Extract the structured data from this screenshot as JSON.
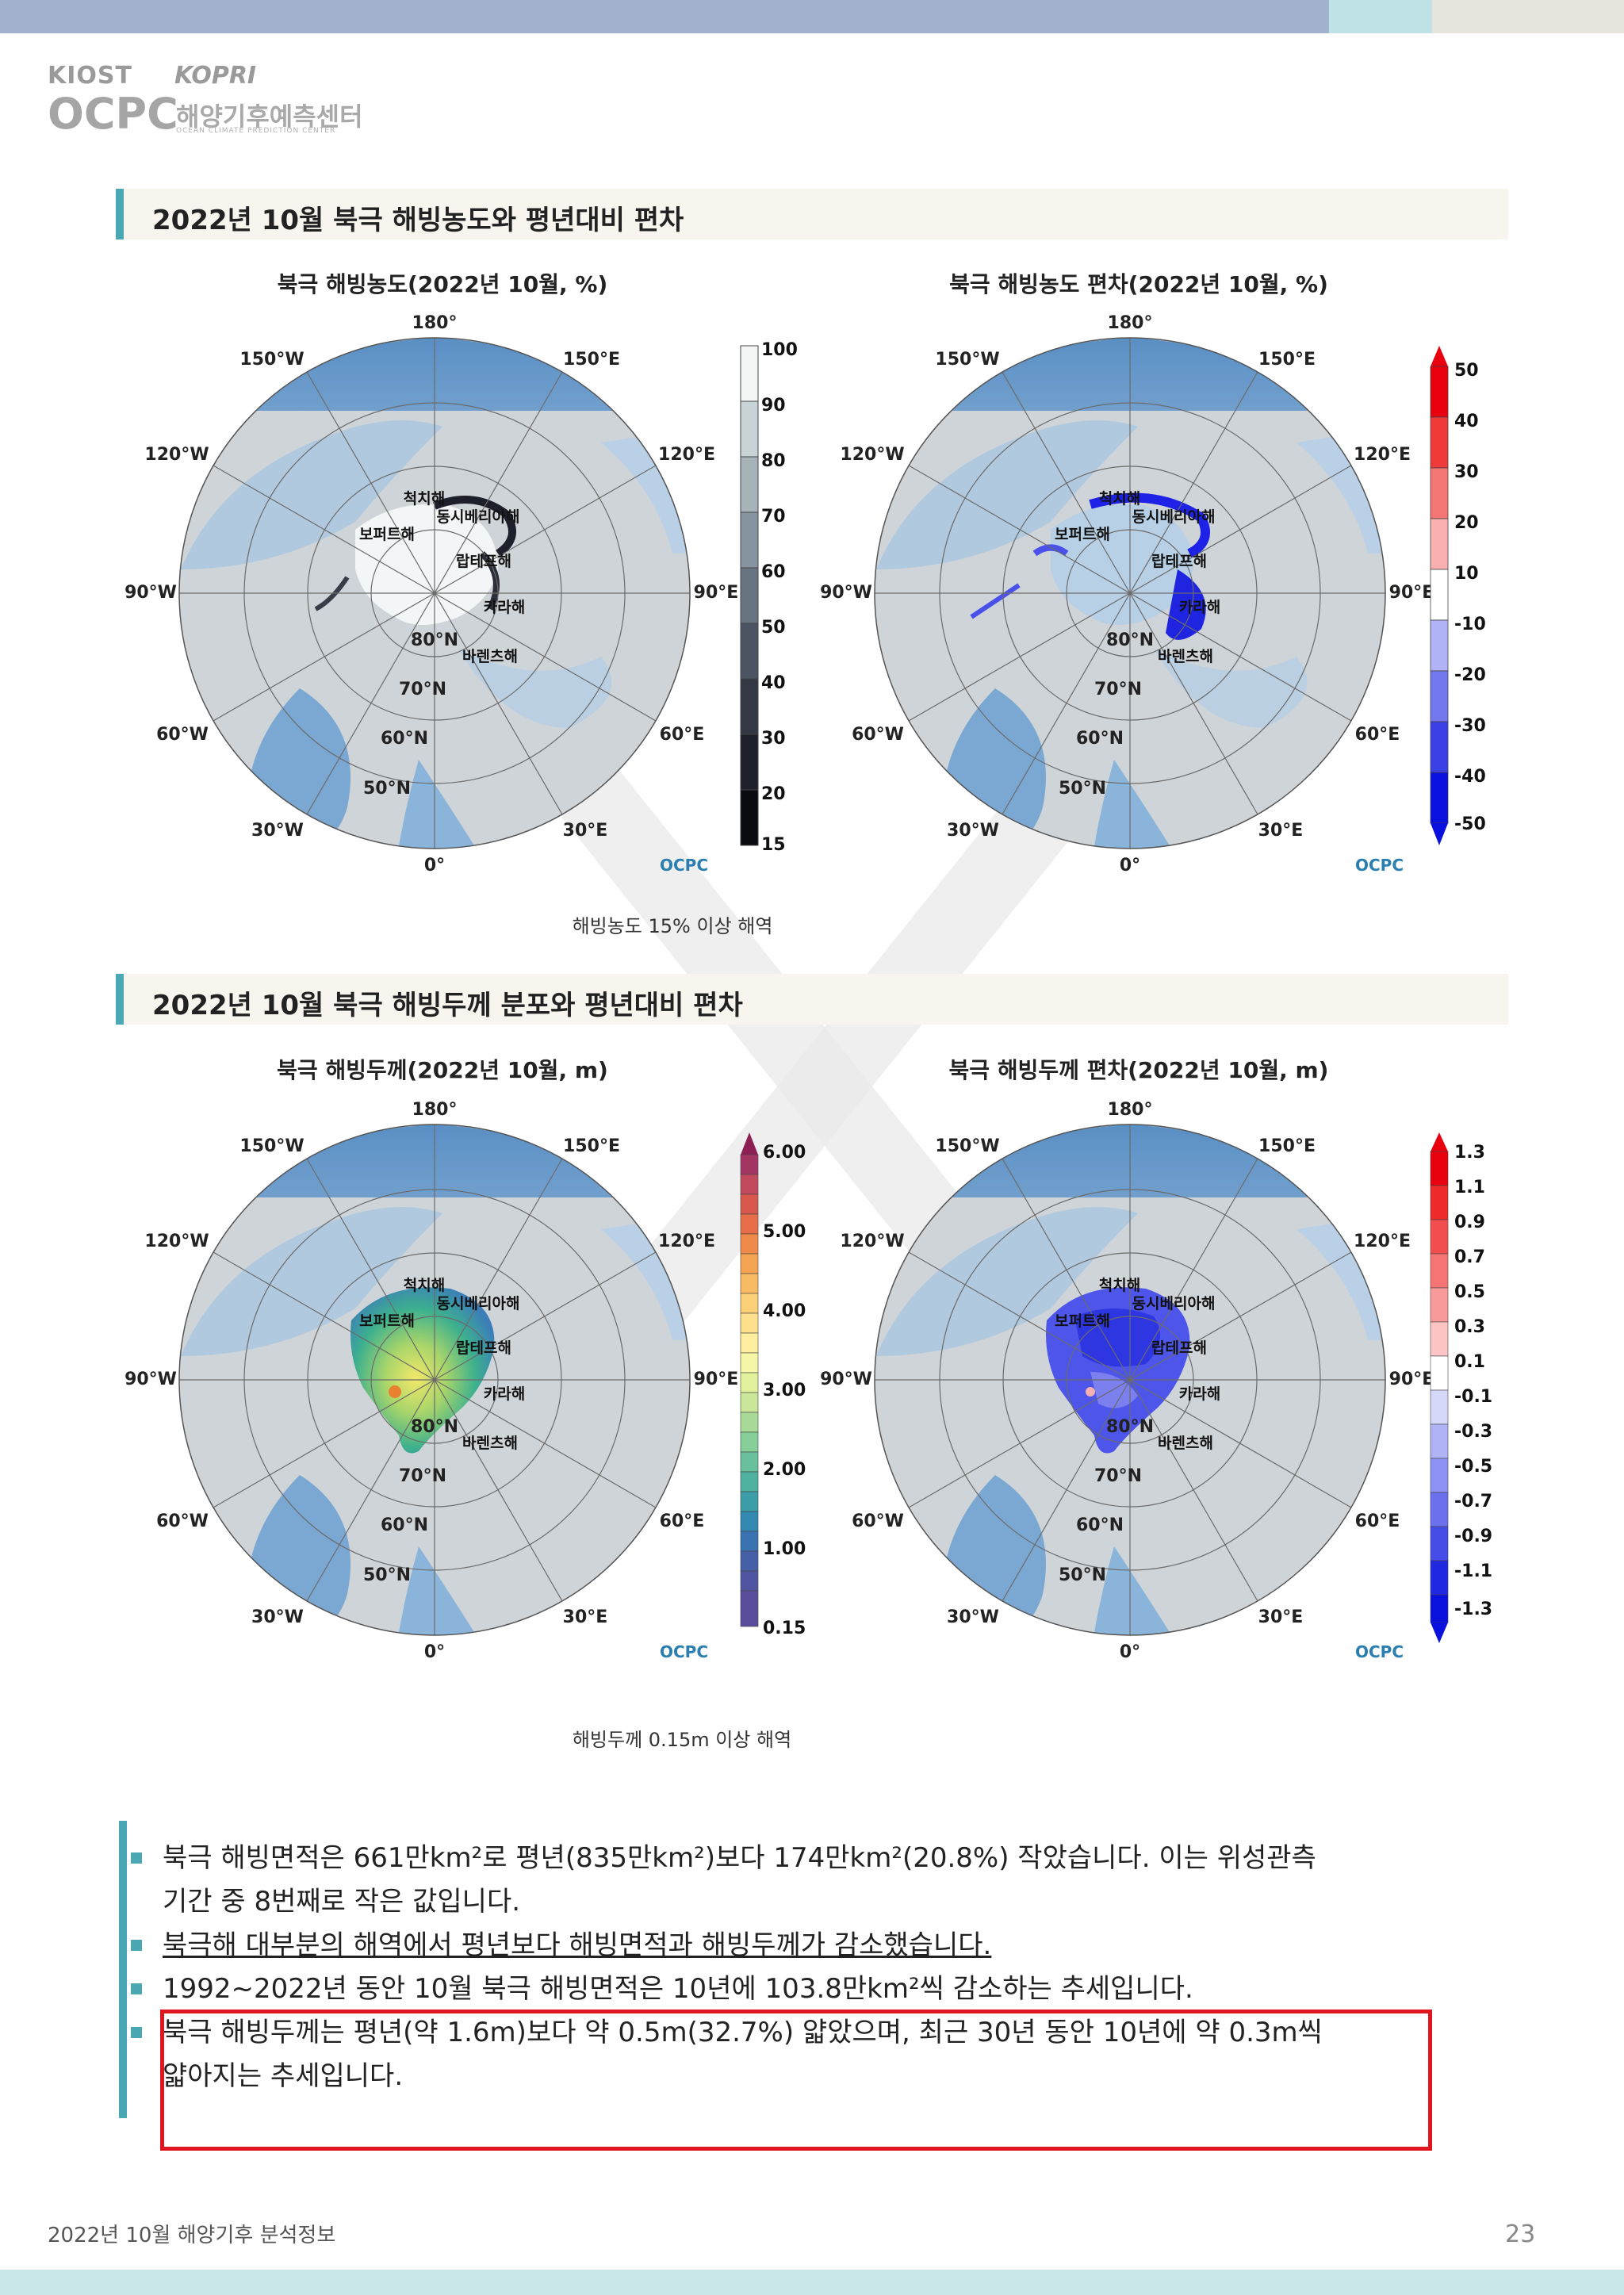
{
  "logo": {
    "kiost": "KIOST",
    "kopri": "KOPRI",
    "ocpc": "OCPC",
    "center_ko": "해양기후예측센터",
    "center_en": "OCEAN CLIMATE PREDICTION CENTER"
  },
  "section1": {
    "title": "2022년 10월 북극 해빙농도와 평년대비 편차",
    "caption": "해빙농도 15% 이상 해역",
    "left_map": {
      "title": "북극 해빙농도(2022년 10월, %)",
      "colorbar_labels": [
        "100",
        "90",
        "80",
        "70",
        "60",
        "50",
        "40",
        "30",
        "20",
        "15"
      ]
    },
    "right_map": {
      "title": "북극 해빙농도 편차(2022년 10월, %)",
      "colorbar_labels": [
        "50",
        "40",
        "30",
        "20",
        "10",
        "-10",
        "-20",
        "-30",
        "-40",
        "-50"
      ]
    }
  },
  "section2": {
    "title": "2022년 10월 북극 해빙두께 분포와 평년대비 편차",
    "caption": "해빙두께 0.15m 이상 해역",
    "left_map": {
      "title": "북극 해빙두께(2022년 10월, m)",
      "colorbar_labels": [
        "6.00",
        "5.00",
        "4.00",
        "3.00",
        "2.00",
        "1.00",
        "0.15"
      ]
    },
    "right_map": {
      "title": "북극 해빙두께 편차(2022년 10월, m)",
      "colorbar_labels": [
        "1.3",
        "1.1",
        "0.9",
        "0.7",
        "0.5",
        "0.3",
        "0.1",
        "-0.1",
        "-0.3",
        "-0.5",
        "-0.7",
        "-0.9",
        "-1.1",
        "-1.3"
      ]
    }
  },
  "map_labels": {
    "lon_180": "180°",
    "lon_150w": "150°W",
    "lon_150e": "150°E",
    "lon_120w": "120°W",
    "lon_120e": "120°E",
    "lon_90w": "90°W",
    "lon_90e": "90°E",
    "lon_60w": "60°W",
    "lon_60e": "60°E",
    "lon_30w": "30°W",
    "lon_30e": "30°E",
    "lon_0": "0°",
    "lat_80": "80°N",
    "lat_70": "70°N",
    "lat_60": "60°N",
    "lat_50": "50°N",
    "sea_chukchi": "척치해",
    "sea_east_siberian": "동시베리아해",
    "sea_beaufort": "보퍼트해",
    "sea_laptev": "랍테프해",
    "sea_kara": "카라해",
    "sea_barents": "바렌츠해",
    "brand": "OCPC"
  },
  "colors": {
    "accent_teal": "#4aa8b4",
    "highlight_red": "#e0161e",
    "ocean_blue": "#5f96c7",
    "land_gray": "#cfcfcf"
  },
  "bullets": {
    "b1_line1": "북극 해빙면적은 661만km²로 평년(835만km²)보다 174만km²(20.8%) 작았습니다. 이는 위성관측",
    "b1_line2": "기간 중 8번째로 작은 값입니다.",
    "b2": "북극해 대부분의 해역에서 평년보다 해빙면적과 해빙두께가 감소했습니다.",
    "b3": "1992~2022년 동안 10월 북극 해빙면적은 10년에 103.8만km²씩 감소하는 추세입니다.",
    "b4_line1": "북극 해빙두께는 평년(약 1.6m)보다 약 0.5m(32.7%) 얇았으며, 최근 30년 동안 10년에 약 0.3m씩",
    "b4_line2": "얇아지는 추세입니다."
  },
  "footer": {
    "left": "2022년 10월 해양기후 분석정보",
    "page_number": "23"
  }
}
